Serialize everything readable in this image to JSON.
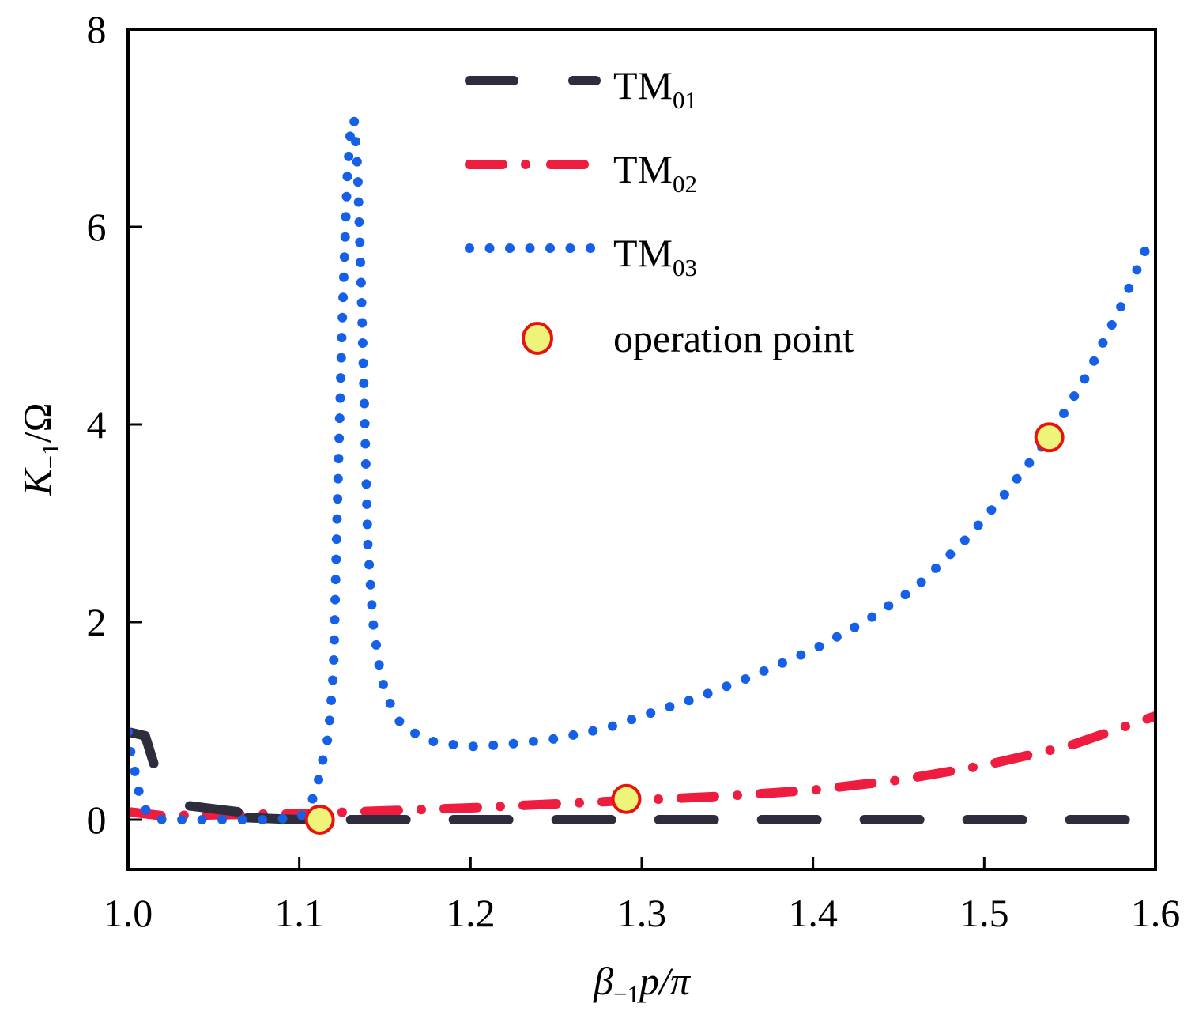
{
  "chart_data": {
    "type": "line",
    "title": "",
    "xlabel": {
      "main": "β",
      "sub": "−1",
      "rest": "p/π"
    },
    "ylabel": {
      "main": "K",
      "sub": "−1",
      "rest": "/Ω"
    },
    "xlim": [
      1.0,
      1.6
    ],
    "ylim": [
      -0.5,
      8
    ],
    "xticks": [
      1.0,
      1.1,
      1.2,
      1.3,
      1.4,
      1.5,
      1.6
    ],
    "xtick_labels": [
      "1.0",
      "1.1",
      "1.2",
      "1.3",
      "1.4",
      "1.5",
      "1.6"
    ],
    "yticks": [
      0,
      2,
      4,
      6,
      8
    ],
    "ytick_labels": [
      "0",
      "2",
      "4",
      "6",
      "8"
    ],
    "grid": false,
    "legend_position": "top-center",
    "series": [
      {
        "name": "TM01",
        "label_main": "TM",
        "label_sub": "01",
        "style": "dashed",
        "color": "#2e2d3d",
        "segments": [
          {
            "x": [
              1.0,
              1.01,
              1.015
            ],
            "y": [
              0.89,
              0.85,
              0.57
            ]
          },
          {
            "x": [
              1.036,
              1.05,
              1.064
            ],
            "y": [
              0.14,
              0.11,
              0.08
            ]
          },
          {
            "x": [
              1.07,
              1.1,
              1.6
            ],
            "y": [
              0.02,
              0.0,
              0.0
            ]
          }
        ]
      },
      {
        "name": "TM02",
        "label_main": "TM",
        "label_sub": "02",
        "style": "dashdot",
        "color": "#ee1c3f",
        "x": [
          1.0,
          1.02,
          1.05,
          1.1,
          1.15,
          1.2,
          1.25,
          1.3,
          1.35,
          1.4,
          1.45,
          1.5,
          1.55,
          1.6
        ],
        "y": [
          0.08,
          0.04,
          0.05,
          0.06,
          0.09,
          0.12,
          0.16,
          0.2,
          0.24,
          0.3,
          0.4,
          0.55,
          0.75,
          1.05
        ]
      },
      {
        "name": "TM03",
        "label_main": "TM",
        "label_sub": "03",
        "style": "dotted",
        "color": "#1660e8",
        "x": [
          1.0,
          1.002,
          1.005,
          1.007,
          1.012,
          1.02,
          1.04,
          1.06,
          1.08,
          1.1,
          1.105,
          1.11,
          1.113,
          1.117,
          1.12,
          1.122,
          1.125,
          1.128,
          1.13,
          1.132,
          1.134,
          1.136,
          1.138,
          1.14,
          1.143,
          1.147,
          1.15,
          1.155,
          1.16,
          1.17,
          1.18,
          1.2,
          1.22,
          1.25,
          1.28,
          1.3,
          1.33,
          1.36,
          1.4,
          1.43,
          1.46,
          1.49,
          1.51,
          1.538,
          1.56,
          1.58,
          1.595
        ],
        "y": [
          0.89,
          0.62,
          0.42,
          0.22,
          0.04,
          0.0,
          0.0,
          0.0,
          0.0,
          0.02,
          0.1,
          0.3,
          0.55,
          0.85,
          1.5,
          3.0,
          5.0,
          6.5,
          7.0,
          7.09,
          6.6,
          5.5,
          4.2,
          2.8,
          2.0,
          1.52,
          1.3,
          1.1,
          0.95,
          0.85,
          0.78,
          0.74,
          0.76,
          0.82,
          0.93,
          1.05,
          1.22,
          1.42,
          1.72,
          2.0,
          2.35,
          2.85,
          3.25,
          3.87,
          4.5,
          5.2,
          5.8
        ]
      }
    ],
    "operation_points": {
      "name": "operation point",
      "fill": "#eef47a",
      "stroke": "#e8120f",
      "points": [
        {
          "x": 1.112,
          "y": 0.0
        },
        {
          "x": 1.291,
          "y": 0.21
        },
        {
          "x": 1.538,
          "y": 3.87
        }
      ]
    }
  }
}
